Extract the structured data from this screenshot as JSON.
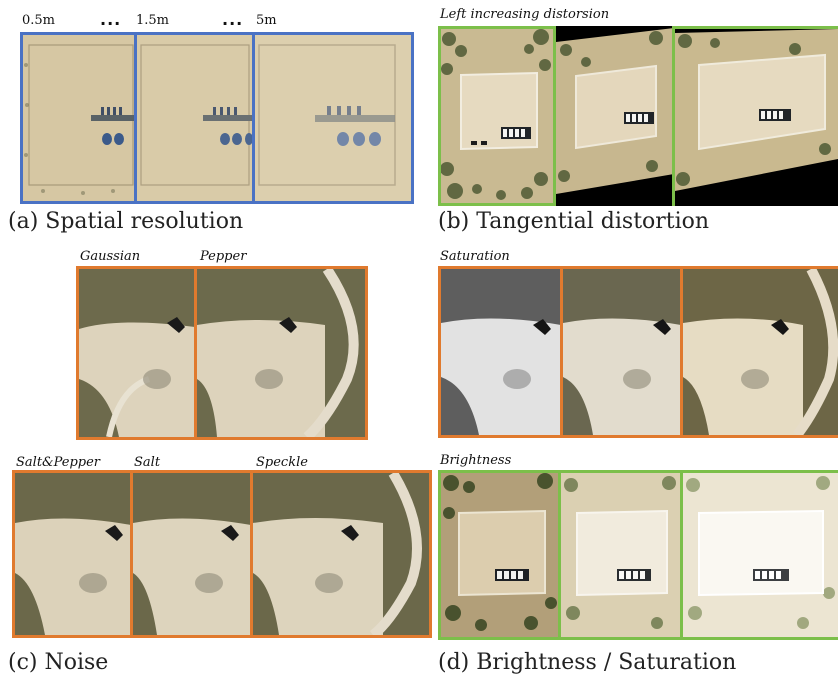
{
  "panel_a": {
    "labels": [
      "0.5m",
      "1.5m",
      "5m"
    ],
    "ellipsis": "...",
    "caption": "(a) Spatial resolution"
  },
  "panel_b": {
    "label": "Left increasing distorsion",
    "caption": "(b) Tangential distortion"
  },
  "panel_c": {
    "labels": [
      "Gaussian",
      "Pepper",
      "Salt&Pepper",
      "Salt",
      "Speckle"
    ],
    "caption": "(c) Noise"
  },
  "panel_d": {
    "labels": [
      "Saturation",
      "Brightness"
    ],
    "caption": "(d) Brightness / Saturation"
  },
  "colors": {
    "blue_frame": "#4a72c4",
    "green_frame": "#7cbf4a",
    "orange_frame": "#e07a2e"
  }
}
